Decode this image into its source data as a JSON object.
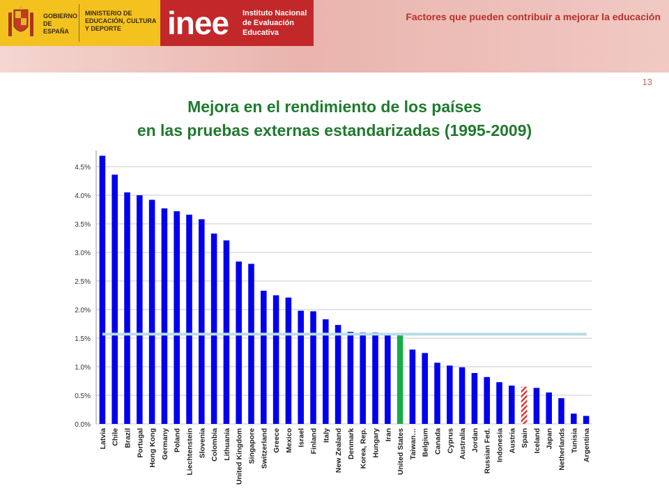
{
  "header": {
    "gov_text": "GOBIERNO DE ESPAÑA",
    "ministry_text": "MINISTERIO DE EDUCACIÓN, CULTURA Y DEPORTE",
    "inee_logo": "inee",
    "inee_institute": "Instituto Nacional de Evaluación Educativa",
    "presentation_title": "Factores que pueden contribuir a mejorar la educación",
    "page_number": "13"
  },
  "colors": {
    "bar": "#0000ee",
    "highlight_bar": "#1aaa4a",
    "spain_hatch": "#e03030",
    "reference_line": "#b9dde6",
    "grid": "#c8c8c8"
  },
  "chart_data": {
    "type": "bar",
    "title_line1": "Mejora en el rendimiento de los países",
    "title_line2": "en las pruebas externas estandarizadas (1995-2009)",
    "ylim": [
      0,
      4.5
    ],
    "yticks": [
      "0.0%",
      "0.5%",
      "1.0%",
      "1.5%",
      "2.0%",
      "2.5%",
      "3.0%",
      "3.5%",
      "4.0%",
      "4.5%"
    ],
    "grid": true,
    "reference_value": 1.57,
    "highlighted": "United States",
    "hatched": "Spain",
    "categories": [
      "Latvia",
      "Chile",
      "Brazil",
      "Portugal",
      "Hong Kong",
      "Germany",
      "Poland",
      "Liechtenstein",
      "Slovenia",
      "Colombia",
      "Lithuania",
      "United Kingdom",
      "Singapore",
      "Switzerland",
      "Greece",
      "Mexico",
      "Israel",
      "Finland",
      "Italy",
      "New Zealand",
      "Denmark",
      "Korea, Rep.",
      "Hungary",
      "Iran",
      "United States",
      "Taiwan…",
      "Belgium",
      "Canada",
      "Cyprus",
      "Australia",
      "Jordan",
      "Russian Fed.",
      "Indonesia",
      "Austria",
      "Spain",
      "Iceland",
      "Japan",
      "Netherlands",
      "Tunisia",
      "Argentina"
    ],
    "values": [
      4.69,
      4.36,
      4.05,
      4.0,
      3.92,
      3.77,
      3.72,
      3.66,
      3.58,
      3.33,
      3.21,
      2.84,
      2.8,
      2.33,
      2.25,
      2.21,
      1.98,
      1.97,
      1.83,
      1.73,
      1.61,
      1.6,
      1.6,
      1.56,
      1.55,
      1.3,
      1.24,
      1.07,
      1.02,
      0.99,
      0.89,
      0.82,
      0.73,
      0.67,
      0.65,
      0.63,
      0.55,
      0.45,
      0.18,
      0.14
    ]
  }
}
